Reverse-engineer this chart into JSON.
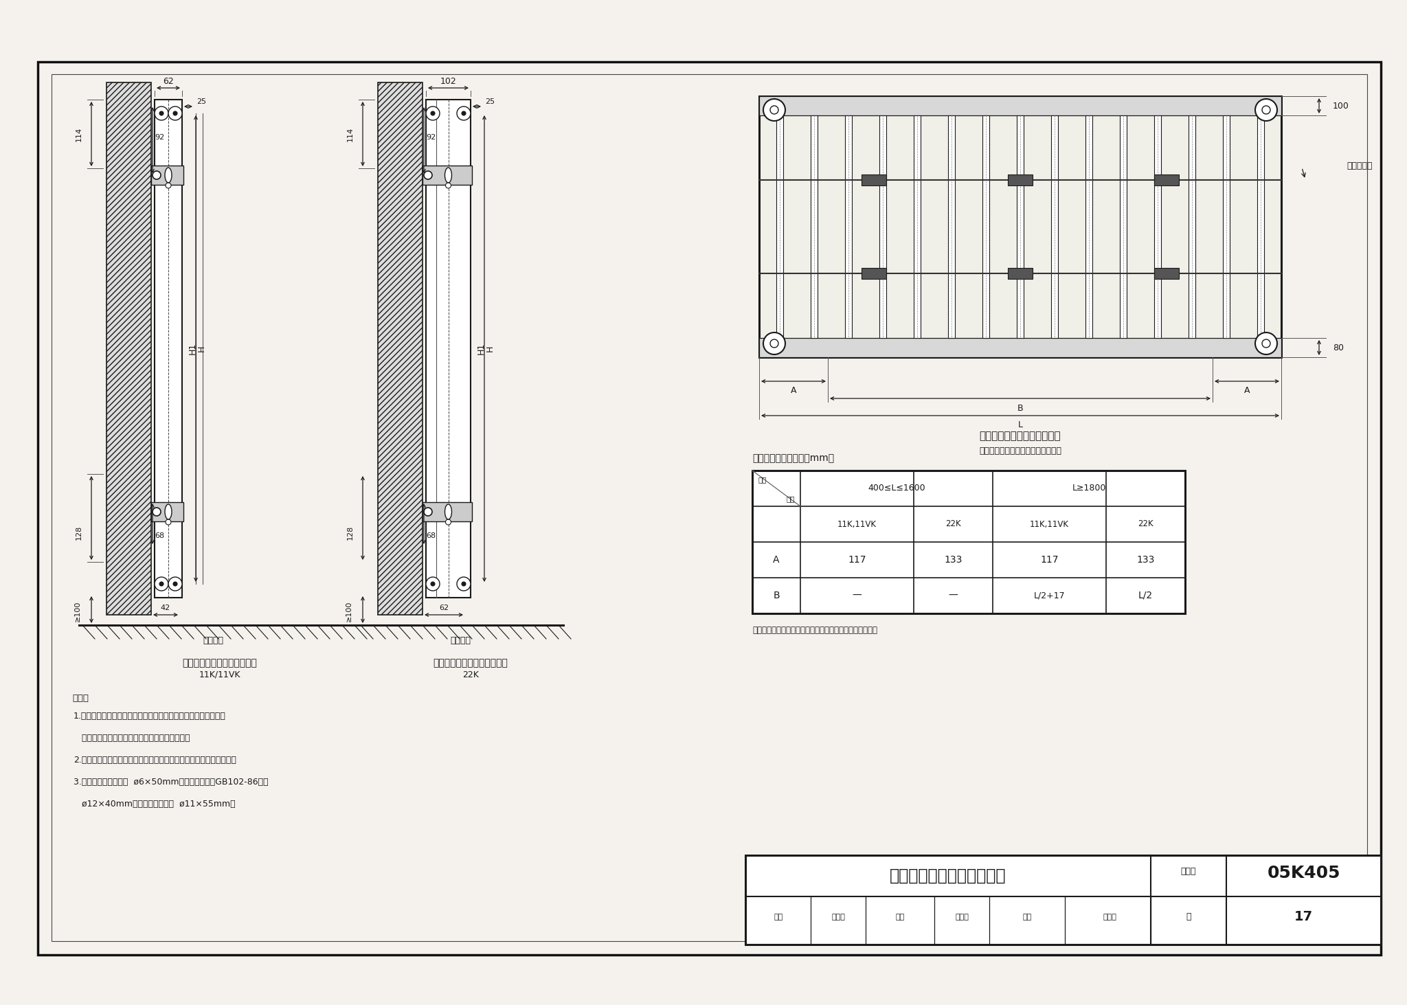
{
  "bg_color": "#f5f2ee",
  "title_main": "钢制板型散热器安装（一）",
  "title_code": "05K405",
  "title_page_label": "图集号",
  "title_page": "页",
  "title_page_num": "17",
  "review_label": "审核",
  "review_name": "孙淑萍",
  "check_label": "校对",
  "check_name": "劳逸民",
  "design_label": "设计",
  "design_name": "胡建画",
  "note_title": "说明：",
  "note_lines": [
    "1.本页适用于钢制板型散热器采用普通支架挂墙安装，根据瑞特格",
    "   散热器（天津）有限公司提供的技术资料编制。",
    "2.挂装散热器的距地高度应按工程设计要求确定，无要求时可按图示。",
    "3.支架固定用胀锚螺栓  ø6×50mm六角头木螺钉（GB102-86），",
    "   ø12×40mm塑料胀管，安装孔  ø11×55mm。"
  ],
  "diagram1_title": "板型散热器普通支架挂墙安装",
  "diagram1_subtitle": "11K/11VK",
  "diagram2_title": "板型散热器普通支架挂墙安装",
  "diagram2_subtitle": "22K",
  "diagram3_title": "散热器固定片设置位置示意图",
  "diagram3_subtitle": "（适用于普通支架、德式支架挂装）",
  "table_title": "支架设置位置：（单位mm）",
  "table_note": "（此表同样适用于普通支架、德式支架、弹簧支架的挂装）",
  "table_header2_1": "400≤L≤1600",
  "table_header2_2": "L≥1800",
  "table_header_length": "长度",
  "table_header_value": "数值",
  "table_col1": "11K,11VK",
  "table_col2": "22K",
  "table_col3": "11K,11VK",
  "table_col4": "22K",
  "table_rowA": "A",
  "table_A1": "117",
  "table_A2": "133",
  "table_A3": "117",
  "table_A4": "133",
  "table_rowB": "B",
  "table_B1": "—",
  "table_B2": "—",
  "table_B3": "L/2+17",
  "table_B4": "L/2",
  "dim1_top": "62",
  "dim1_92": "92",
  "dim1_25": "25",
  "dim1_114": "114",
  "dim1_H": "H",
  "dim1_H1": "H1",
  "dim1_128": "128",
  "dim1_68": "68",
  "dim1_100": "≥100",
  "dim1_42": "42",
  "dim2_top": "102",
  "dim2_92": "92",
  "dim2_25": "25",
  "dim2_114": "114",
  "dim2_H": "H",
  "dim2_H1": "H1",
  "dim2_128": "128",
  "dim2_68": "68",
  "dim2_100": "≥100",
  "dim2_62": "62",
  "dim3_100": "100",
  "dim3_80": "80",
  "dim3_A": "A",
  "dim3_B": "B",
  "dim3_L": "L",
  "ground_label": "建筑地面",
  "fixplate_label": "固定支撑片"
}
